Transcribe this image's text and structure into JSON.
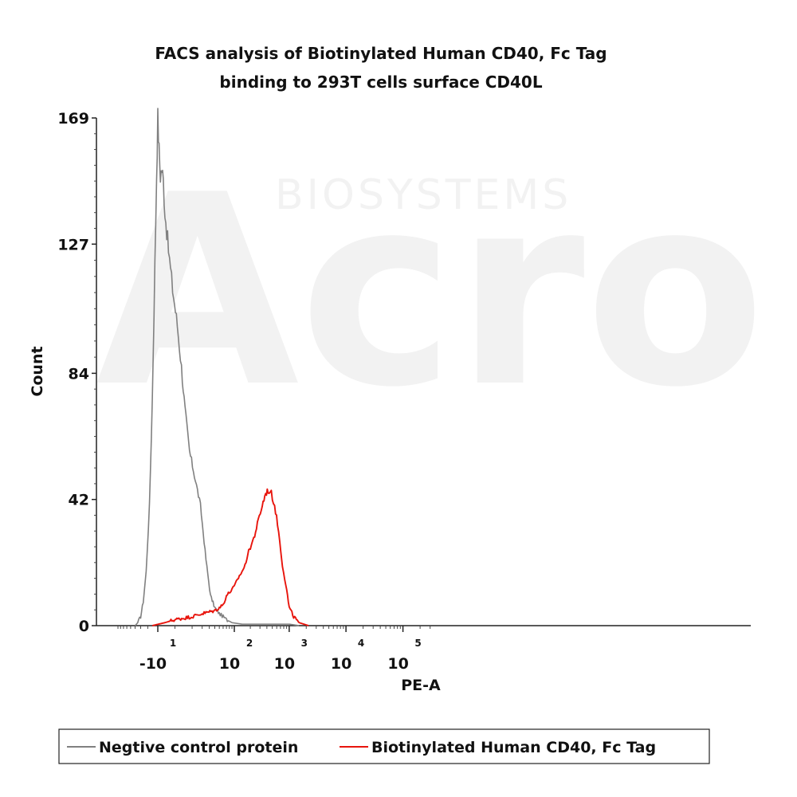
{
  "watermark": {
    "brand": "Acro",
    "sub": "BIOSYSTEMS"
  },
  "chart_data": {
    "type": "line",
    "title_line1": "FACS analysis of Biotinylated Human CD40, Fc Tag",
    "title_line2": "binding to 293T cells surface CD40L",
    "xlabel": "PE-A",
    "ylabel": "Count",
    "x_scale": "biexponential",
    "ylim": [
      0,
      169
    ],
    "y_ticks": [
      0,
      42,
      84,
      127,
      169
    ],
    "x_ticks": [
      {
        "base": "-10",
        "exp": "1",
        "value": -10
      },
      {
        "base": "10",
        "exp": "2",
        "value": 100
      },
      {
        "base": "10",
        "exp": "3",
        "value": 1000
      },
      {
        "base": "10",
        "exp": "4",
        "value": 10000
      },
      {
        "base": "10",
        "exp": "5",
        "value": 100000
      }
    ],
    "legend_position": "bottom",
    "series": [
      {
        "name": "Negtive control protein",
        "color": "#808080",
        "points": [
          [
            -40,
            0
          ],
          [
            -35,
            1
          ],
          [
            -30,
            3
          ],
          [
            -26,
            8
          ],
          [
            -22,
            18
          ],
          [
            -18,
            40
          ],
          [
            -15,
            75
          ],
          [
            -12.5,
            120
          ],
          [
            -11,
            150
          ],
          [
            -10,
            169
          ],
          [
            -9,
            158
          ],
          [
            -8,
            150
          ],
          [
            -7,
            152
          ],
          [
            -6,
            148
          ],
          [
            -5,
            138
          ],
          [
            -3,
            125
          ],
          [
            -1,
            112
          ],
          [
            1,
            100
          ],
          [
            3,
            86
          ],
          [
            5,
            72
          ],
          [
            8,
            58
          ],
          [
            12,
            50
          ],
          [
            18,
            40
          ],
          [
            25,
            22
          ],
          [
            32,
            10
          ],
          [
            40,
            6
          ],
          [
            50,
            4
          ],
          [
            60,
            3
          ],
          [
            70,
            2
          ],
          [
            90,
            1
          ],
          [
            140,
            0.5
          ],
          [
            300,
            0.5
          ],
          [
            1000,
            0.5
          ],
          [
            1500,
            0
          ]
        ]
      },
      {
        "name": "Biotinylated Human CD40, Fc Tag",
        "color": "#e8140c",
        "points": [
          [
            -15,
            0
          ],
          [
            -5,
            1
          ],
          [
            0,
            2
          ],
          [
            10,
            3
          ],
          [
            20,
            4
          ],
          [
            40,
            5
          ],
          [
            50,
            6
          ],
          [
            60,
            7
          ],
          [
            70,
            10
          ],
          [
            80,
            11
          ],
          [
            90,
            12
          ],
          [
            100,
            13
          ],
          [
            120,
            16
          ],
          [
            140,
            18
          ],
          [
            160,
            20
          ],
          [
            180,
            24
          ],
          [
            200,
            26
          ],
          [
            240,
            30
          ],
          [
            280,
            35
          ],
          [
            330,
            40
          ],
          [
            380,
            44
          ],
          [
            420,
            45
          ],
          [
            480,
            44
          ],
          [
            550,
            40
          ],
          [
            620,
            34
          ],
          [
            680,
            28
          ],
          [
            760,
            20
          ],
          [
            830,
            16
          ],
          [
            900,
            12
          ],
          [
            1000,
            6
          ],
          [
            1200,
            3
          ],
          [
            1500,
            1
          ],
          [
            2200,
            0
          ]
        ]
      }
    ]
  }
}
